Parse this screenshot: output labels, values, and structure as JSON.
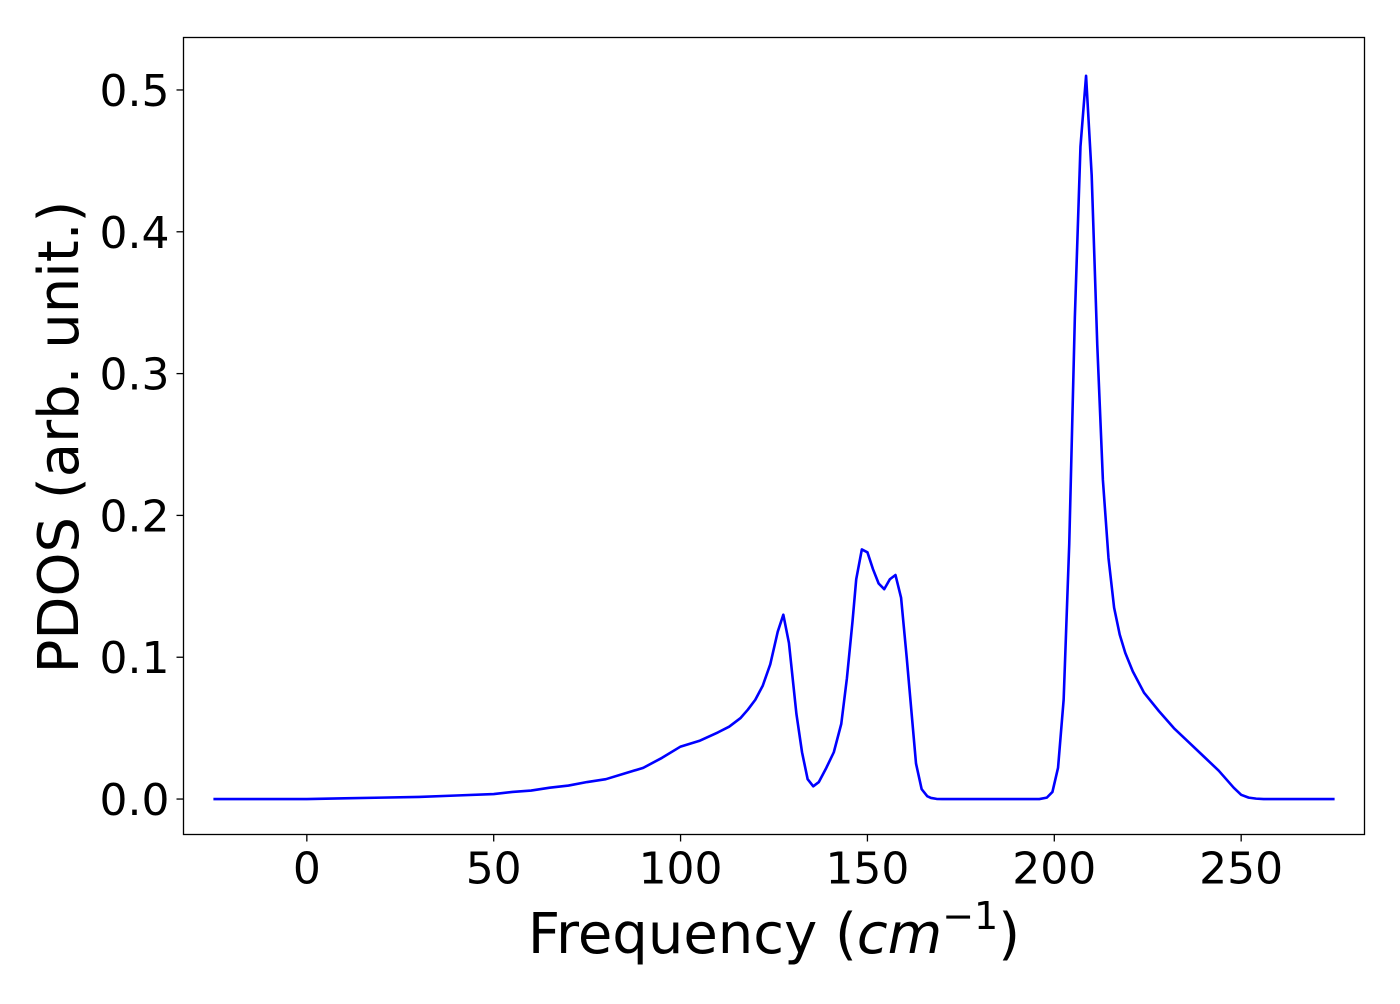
{
  "chart_data": {
    "type": "line",
    "title": "",
    "xlabel": {
      "prefix": "Frequency (",
      "unit_base": "cm",
      "unit_exp": "−1",
      "suffix": ")"
    },
    "ylabel": "PDOS (arb. unit.)",
    "xlim": [
      -33,
      283
    ],
    "ylim": [
      -0.025,
      0.537
    ],
    "xticks": [
      0,
      50,
      100,
      150,
      200,
      250
    ],
    "xtick_labels": [
      "0",
      "50",
      "100",
      "150",
      "200",
      "250"
    ],
    "yticks": [
      0.0,
      0.1,
      0.2,
      0.3,
      0.4,
      0.5
    ],
    "ytick_labels": [
      "0.0",
      "0.1",
      "0.2",
      "0.3",
      "0.4",
      "0.5"
    ],
    "grid": false,
    "legend": "none",
    "series": [
      {
        "color": "#0000ff",
        "x": [
          -25,
          -10,
          0,
          10,
          20,
          30,
          40,
          50,
          55,
          60,
          65,
          70,
          75,
          80,
          85,
          90,
          95,
          100,
          105,
          110,
          113,
          116,
          118,
          120,
          122,
          124,
          126,
          127.5,
          129,
          131,
          132.5,
          134,
          135.5,
          137,
          139,
          141,
          143,
          144.5,
          146,
          147,
          148.5,
          150,
          151.5,
          153,
          154.5,
          156,
          157.5,
          159,
          160.5,
          162,
          163,
          164.5,
          166,
          167,
          168.5,
          170,
          180,
          190,
          196,
          198,
          199.5,
          201,
          202.5,
          204,
          205.5,
          207,
          208.5,
          210,
          211.5,
          213,
          214.5,
          216,
          217.5,
          219,
          221,
          224,
          228,
          232,
          236,
          240,
          244,
          246,
          248,
          250,
          252,
          254,
          256,
          260,
          275
        ],
        "y": [
          0.0,
          0.0,
          0.0,
          0.0005,
          0.001,
          0.0015,
          0.0025,
          0.0035,
          0.005,
          0.006,
          0.008,
          0.0095,
          0.012,
          0.014,
          0.018,
          0.022,
          0.029,
          0.037,
          0.041,
          0.047,
          0.051,
          0.057,
          0.063,
          0.07,
          0.08,
          0.095,
          0.118,
          0.13,
          0.11,
          0.06,
          0.033,
          0.014,
          0.009,
          0.012,
          0.022,
          0.033,
          0.053,
          0.085,
          0.125,
          0.155,
          0.176,
          0.174,
          0.162,
          0.152,
          0.148,
          0.155,
          0.158,
          0.142,
          0.1,
          0.055,
          0.025,
          0.007,
          0.002,
          0.0008,
          0.0001,
          0.0,
          0.0,
          0.0,
          0.0,
          0.001,
          0.005,
          0.022,
          0.07,
          0.18,
          0.34,
          0.46,
          0.51,
          0.44,
          0.32,
          0.225,
          0.17,
          0.135,
          0.116,
          0.103,
          0.09,
          0.075,
          0.062,
          0.05,
          0.04,
          0.03,
          0.02,
          0.014,
          0.008,
          0.003,
          0.001,
          0.0003,
          0.0,
          0.0,
          0.0
        ]
      }
    ]
  }
}
